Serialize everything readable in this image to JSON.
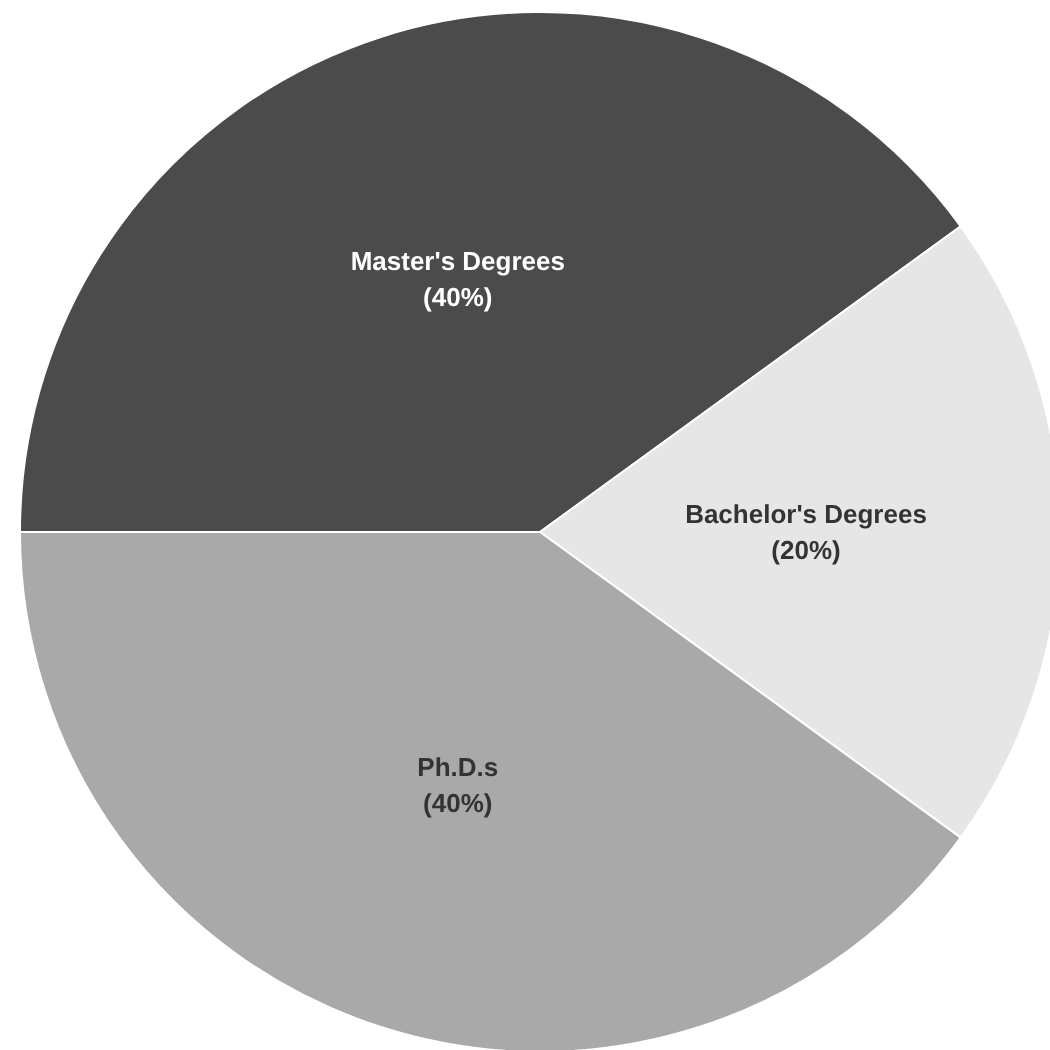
{
  "chart_data": {
    "type": "pie",
    "categories": [
      "Master's Degrees",
      "Bachelor's Degrees",
      "Ph.D.s"
    ],
    "values": [
      40,
      20,
      40
    ],
    "colors": [
      "#4b4b4b",
      "#e6e6e6",
      "#a9a9a9"
    ],
    "value_labels": [
      "(40%)",
      "(20%)",
      "(40%)"
    ],
    "legend": false
  }
}
